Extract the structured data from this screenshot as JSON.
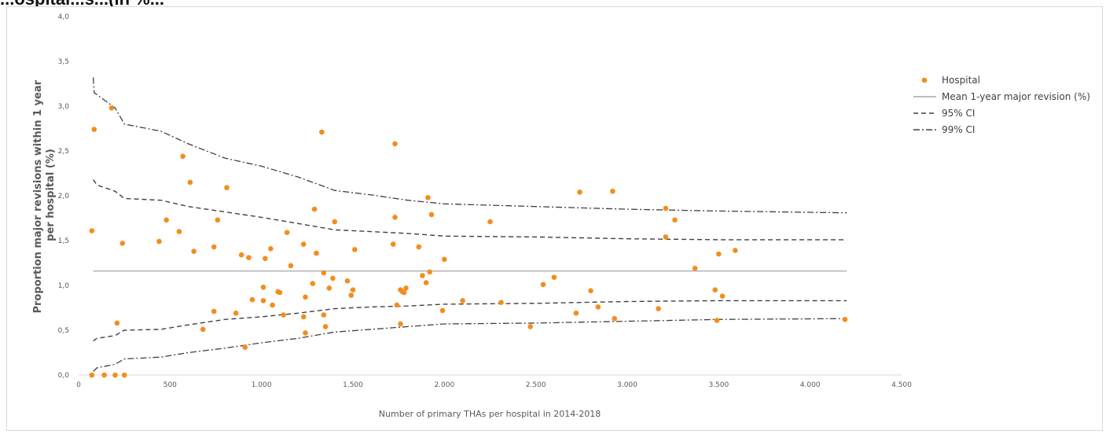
{
  "header": {
    "partial_text": "...ospital...s...(in %..."
  },
  "chart_data": {
    "type": "scatter",
    "xlabel": "Number of primary THAs per hospital in 2014-2018",
    "ylabel_lines": [
      "Proportion major revisions within 1 year",
      "per hospital (%)"
    ],
    "xlim": [
      0,
      4500
    ],
    "ylim": [
      0,
      4
    ],
    "x_ticks": [
      0,
      500,
      1000,
      1500,
      2000,
      2500,
      3000,
      3500,
      4000,
      4500
    ],
    "x_tick_labels": [
      "0",
      "500",
      "1.000",
      "1.500",
      "2.000",
      "2.500",
      "3.000",
      "3.500",
      "4.000",
      "4.500"
    ],
    "y_ticks": [
      0,
      0.5,
      1,
      1.5,
      2,
      2.5,
      3,
      3.5,
      4
    ],
    "y_tick_labels": [
      "0,0",
      "0,5",
      "1,0",
      "1,5",
      "2,0",
      "2,5",
      "3,0",
      "3,5",
      "4,0"
    ],
    "grid": false,
    "legend_position": "top-right",
    "legend": [
      {
        "label": "Hospital",
        "style": "dot"
      },
      {
        "label": "Mean 1-year major revision (%)",
        "style": "solid"
      },
      {
        "label": "95% CI",
        "style": "dash"
      },
      {
        "label": "99% CI",
        "style": "dashdot"
      }
    ],
    "colors": {
      "hospital": "#f28e1c",
      "mean": "#a6a6a6",
      "ci": "#404040"
    },
    "mean": {
      "value": 1.16,
      "x_range": [
        80,
        4200
      ]
    },
    "ci95_upper": [
      [
        80,
        2.18
      ],
      [
        100,
        2.12
      ],
      [
        200,
        2.05
      ],
      [
        250,
        1.97
      ],
      [
        450,
        1.95
      ],
      [
        600,
        1.88
      ],
      [
        800,
        1.82
      ],
      [
        1000,
        1.76
      ],
      [
        1200,
        1.69
      ],
      [
        1400,
        1.62
      ],
      [
        1600,
        1.6
      ],
      [
        1800,
        1.58
      ],
      [
        2000,
        1.55
      ],
      [
        2500,
        1.54
      ],
      [
        3000,
        1.52
      ],
      [
        3500,
        1.51
      ],
      [
        4200,
        1.51
      ]
    ],
    "ci95_lower": [
      [
        80,
        0.38
      ],
      [
        100,
        0.41
      ],
      [
        200,
        0.44
      ],
      [
        250,
        0.5
      ],
      [
        450,
        0.51
      ],
      [
        600,
        0.56
      ],
      [
        800,
        0.62
      ],
      [
        1000,
        0.65
      ],
      [
        1200,
        0.69
      ],
      [
        1400,
        0.74
      ],
      [
        1600,
        0.76
      ],
      [
        1800,
        0.77
      ],
      [
        2000,
        0.79
      ],
      [
        2500,
        0.8
      ],
      [
        3000,
        0.82
      ],
      [
        3500,
        0.83
      ],
      [
        4200,
        0.83
      ]
    ],
    "ci99_upper": [
      [
        80,
        3.32
      ],
      [
        85,
        3.15
      ],
      [
        200,
        2.98
      ],
      [
        250,
        2.8
      ],
      [
        450,
        2.72
      ],
      [
        600,
        2.58
      ],
      [
        800,
        2.42
      ],
      [
        1000,
        2.33
      ],
      [
        1200,
        2.21
      ],
      [
        1400,
        2.06
      ],
      [
        1600,
        2.01
      ],
      [
        1800,
        1.95
      ],
      [
        2000,
        1.91
      ],
      [
        2500,
        1.88
      ],
      [
        3000,
        1.85
      ],
      [
        3500,
        1.83
      ],
      [
        4200,
        1.81
      ]
    ],
    "ci99_lower": [
      [
        80,
        0.04
      ],
      [
        100,
        0.08
      ],
      [
        200,
        0.12
      ],
      [
        250,
        0.18
      ],
      [
        450,
        0.2
      ],
      [
        600,
        0.25
      ],
      [
        800,
        0.3
      ],
      [
        1000,
        0.36
      ],
      [
        1200,
        0.41
      ],
      [
        1400,
        0.48
      ],
      [
        1600,
        0.51
      ],
      [
        1800,
        0.54
      ],
      [
        2000,
        0.57
      ],
      [
        2500,
        0.58
      ],
      [
        3000,
        0.6
      ],
      [
        3500,
        0.62
      ],
      [
        4200,
        0.63
      ]
    ],
    "points": [
      [
        72,
        1.61
      ],
      [
        85,
        2.74
      ],
      [
        180,
        2.98
      ],
      [
        240,
        1.47
      ],
      [
        440,
        1.49
      ],
      [
        480,
        1.73
      ],
      [
        550,
        1.6
      ],
      [
        570,
        2.44
      ],
      [
        610,
        2.15
      ],
      [
        630,
        1.38
      ],
      [
        740,
        1.43
      ],
      [
        760,
        1.73
      ],
      [
        810,
        2.09
      ],
      [
        890,
        1.34
      ],
      [
        930,
        1.31
      ],
      [
        1010,
        0.98
      ],
      [
        1020,
        1.3
      ],
      [
        1050,
        1.41
      ],
      [
        1090,
        0.93
      ],
      [
        1140,
        1.59
      ],
      [
        1160,
        1.22
      ],
      [
        1230,
        1.46
      ],
      [
        1280,
        1.02
      ],
      [
        1290,
        1.85
      ],
      [
        1300,
        1.36
      ],
      [
        1330,
        2.71
      ],
      [
        1340,
        1.14
      ],
      [
        1370,
        0.97
      ],
      [
        1390,
        1.08
      ],
      [
        1400,
        1.71
      ],
      [
        1470,
        1.05
      ],
      [
        1490,
        0.89
      ],
      [
        1500,
        0.95
      ],
      [
        1510,
        1.4
      ],
      [
        1720,
        1.46
      ],
      [
        1730,
        1.76
      ],
      [
        1730,
        2.58
      ],
      [
        1740,
        0.78
      ],
      [
        1760,
        0.95
      ],
      [
        1770,
        0.93
      ],
      [
        1780,
        0.92
      ],
      [
        1790,
        0.97
      ],
      [
        1860,
        1.43
      ],
      [
        1880,
        1.11
      ],
      [
        1900,
        1.03
      ],
      [
        1910,
        1.98
      ],
      [
        1920,
        1.15
      ],
      [
        1930,
        1.79
      ],
      [
        2000,
        1.29
      ],
      [
        2250,
        1.71
      ],
      [
        2540,
        1.01
      ],
      [
        2600,
        1.09
      ],
      [
        2740,
        2.04
      ],
      [
        2800,
        0.94
      ],
      [
        2920,
        2.05
      ],
      [
        3210,
        1.86
      ],
      [
        3210,
        1.54
      ],
      [
        3260,
        1.73
      ],
      [
        3370,
        1.19
      ],
      [
        3480,
        0.95
      ],
      [
        3500,
        1.35
      ],
      [
        3520,
        0.88
      ],
      [
        3590,
        1.39
      ],
      [
        740,
        0.71
      ],
      [
        860,
        0.69
      ],
      [
        950,
        0.84
      ],
      [
        1010,
        0.83
      ],
      [
        1100,
        0.92
      ],
      [
        1120,
        0.67
      ],
      [
        1060,
        0.78
      ],
      [
        1240,
        0.87
      ],
      [
        1240,
        0.47
      ],
      [
        1230,
        0.65
      ],
      [
        1340,
        0.67
      ],
      [
        1350,
        0.54
      ],
      [
        1760,
        0.57
      ],
      [
        1990,
        0.72
      ],
      [
        2100,
        0.83
      ],
      [
        2310,
        0.81
      ],
      [
        2470,
        0.54
      ],
      [
        2720,
        0.69
      ],
      [
        2840,
        0.76
      ],
      [
        2930,
        0.63
      ],
      [
        3170,
        0.74
      ],
      [
        3490,
        0.61
      ],
      [
        4190,
        0.62
      ],
      [
        210,
        0.58
      ],
      [
        680,
        0.51
      ],
      [
        910,
        0.31
      ],
      [
        72,
        0.0
      ],
      [
        140,
        0.0
      ],
      [
        200,
        0.0
      ],
      [
        250,
        0.0
      ]
    ]
  }
}
